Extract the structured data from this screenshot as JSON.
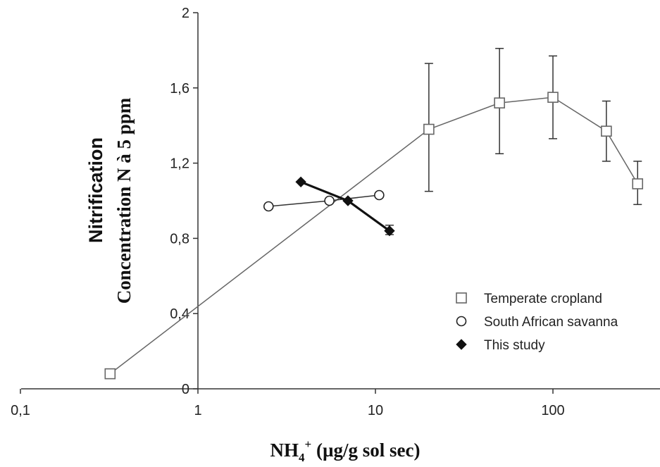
{
  "chart_data": {
    "type": "scatter",
    "x_scale": "log",
    "xlim": [
      0.1,
      400
    ],
    "ylim": [
      0,
      2
    ],
    "x_tick_labels": [
      {
        "value": 0.1,
        "label": "0,1"
      },
      {
        "value": 1,
        "label": "1"
      },
      {
        "value": 10,
        "label": "10"
      },
      {
        "value": 100,
        "label": "100"
      }
    ],
    "y_tick_labels": [
      {
        "value": 0,
        "label": "0"
      },
      {
        "value": 0.4,
        "label": "0,4"
      },
      {
        "value": 0.8,
        "label": "0,8"
      },
      {
        "value": 1.2,
        "label": "1,2"
      },
      {
        "value": 1.6,
        "label": "1,6"
      },
      {
        "value": 2,
        "label": "2"
      }
    ],
    "ylabel_line1": "Nitrification",
    "ylabel_line2": "Concentration N à 5 ppm",
    "xlabel_main": "NH",
    "xlabel_sub": "4",
    "xlabel_sup": "+",
    "xlabel_rest": " (µg/g sol sec)",
    "grid": false,
    "legend_position": "bottom-right",
    "series": [
      {
        "name": "Temperate cropland",
        "marker": "square",
        "color": "#666666",
        "points": [
          {
            "x": 0.32,
            "y": 0.08
          },
          {
            "x": 20,
            "y": 1.38,
            "err_low": 1.05,
            "err_high": 1.73
          },
          {
            "x": 50,
            "y": 1.52,
            "err_low": 1.25,
            "err_high": 1.81
          },
          {
            "x": 100,
            "y": 1.55,
            "err_low": 1.33,
            "err_high": 1.77
          },
          {
            "x": 200,
            "y": 1.37,
            "err_low": 1.21,
            "err_high": 1.53
          },
          {
            "x": 300,
            "y": 1.09,
            "err_low": 0.98,
            "err_high": 1.21
          }
        ]
      },
      {
        "name": "South African savanna",
        "marker": "circle",
        "color": "#222222",
        "points": [
          {
            "x": 2.5,
            "y": 0.97
          },
          {
            "x": 5.5,
            "y": 1.0
          },
          {
            "x": 10.5,
            "y": 1.03
          }
        ]
      },
      {
        "name": "This study",
        "marker": "diamond",
        "color": "#111111",
        "points": [
          {
            "x": 3.8,
            "y": 1.1
          },
          {
            "x": 7.0,
            "y": 1.0
          },
          {
            "x": 12.0,
            "y": 0.84,
            "err_low": 0.82,
            "err_high": 0.87
          }
        ]
      }
    ]
  }
}
